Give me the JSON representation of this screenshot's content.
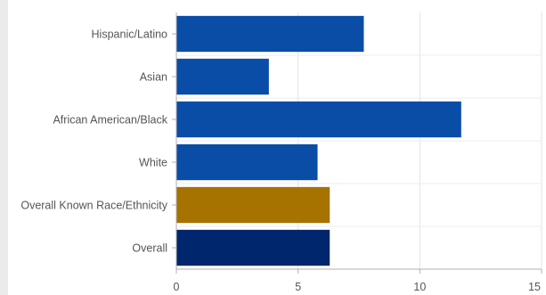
{
  "colors": {
    "background": "#ebebeb",
    "plot_background": "#ffffff",
    "gridline": "#e3e3e3",
    "axis_line": "#b0b0b0",
    "tick_text": "#555555",
    "bar_default": "#0a4da6",
    "bar_known_overall": "#a67200",
    "bar_overall": "#00266e"
  },
  "chart_data": {
    "type": "bar",
    "orientation": "horizontal",
    "title": "",
    "xlabel": "",
    "ylabel": "",
    "categories": [
      "Hispanic/Latino",
      "Asian",
      "African American/Black",
      "White",
      "Overall Known Race/Ethnicity",
      "Overall"
    ],
    "values": [
      7.7,
      3.8,
      11.7,
      5.8,
      6.3,
      6.3
    ],
    "bar_colors": [
      "#0a4da6",
      "#0a4da6",
      "#0a4da6",
      "#0a4da6",
      "#a67200",
      "#00266e"
    ],
    "xlim": [
      0,
      15
    ],
    "xticks": [
      0,
      5,
      10,
      15
    ],
    "grid": true,
    "legend": "none"
  }
}
